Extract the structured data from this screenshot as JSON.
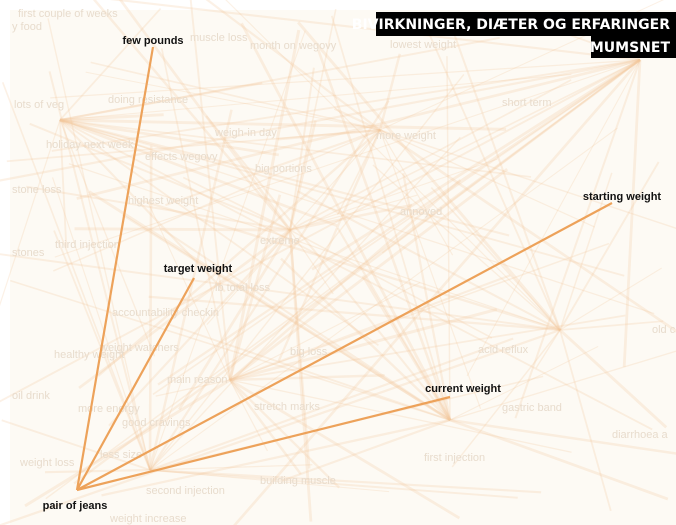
{
  "header": {
    "title": "BIVIRKNINGER, DIÆTER OG ERFARINGER",
    "subtitle": "MUMSNET"
  },
  "nodes": [
    {
      "label": "few pounds"
    },
    {
      "label": "target weight"
    },
    {
      "label": "starting weight"
    },
    {
      "label": "current weight"
    },
    {
      "label": "pair of jeans"
    }
  ],
  "background_terms": [
    "first couple of weeks",
    "y food",
    "muscle loss",
    "month on wegovy",
    "lowest weight",
    "lots of veg",
    "doing resistance",
    "short term",
    "weigh-in day",
    "more weight",
    "holiday next week",
    "effects wegovy",
    "big portions",
    "stone loss",
    "highest weight",
    "annoyed",
    "third injection",
    "stones",
    "extreme",
    "lb total loss",
    "accountability checkin",
    "old cl",
    "healthy weight",
    "weight watchers",
    "big loss",
    "acid reflux",
    "main reason",
    "oil drink",
    "more energy",
    "stretch marks",
    "gastric band",
    "good cravings",
    "diarrhoea a",
    "weight loss",
    "less size",
    "first injection",
    "building muscle",
    "second injection",
    "weight increase"
  ]
}
